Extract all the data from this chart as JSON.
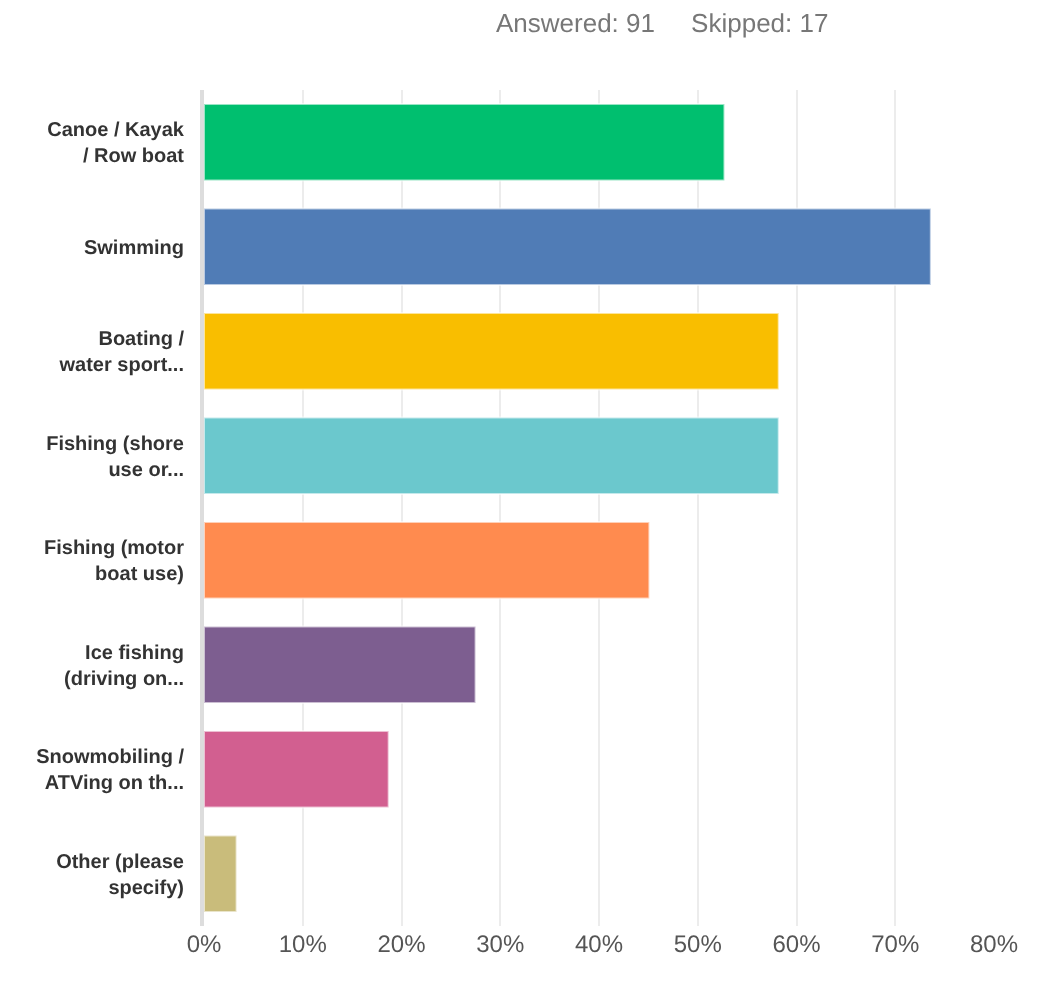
{
  "chart_data": {
    "type": "bar",
    "orientation": "horizontal",
    "subtitle": "Answered: 91     Skipped: 17",
    "categories": [
      "Canoe / Kayak\n/ Row boat",
      "Swimming",
      "Boating /\nwater sport...",
      "Fishing (shore\nuse or...",
      "Fishing (motor\nboat use)",
      "Ice fishing\n(driving on...",
      "Snowmobiling /\nATVing on th...",
      "Other (please\nspecify)"
    ],
    "values": [
      52.7,
      73.6,
      58.2,
      58.2,
      45.1,
      27.5,
      18.7,
      3.3
    ],
    "colors": [
      "#00bf6f",
      "#507cb6",
      "#f9be00",
      "#6bc8cd",
      "#ff8b4f",
      "#7d5e90",
      "#d25f90",
      "#c9bc7b"
    ],
    "xlim": [
      0,
      80
    ],
    "xticks": [
      {
        "value": 0,
        "label": "0%"
      },
      {
        "value": 10,
        "label": "10%"
      },
      {
        "value": 20,
        "label": "20%"
      },
      {
        "value": 30,
        "label": "30%"
      },
      {
        "value": 40,
        "label": "40%"
      },
      {
        "value": 50,
        "label": "50%"
      },
      {
        "value": 60,
        "label": "60%"
      },
      {
        "value": 70,
        "label": "70%"
      },
      {
        "value": 80,
        "label": "80%"
      }
    ],
    "grid": "x"
  }
}
